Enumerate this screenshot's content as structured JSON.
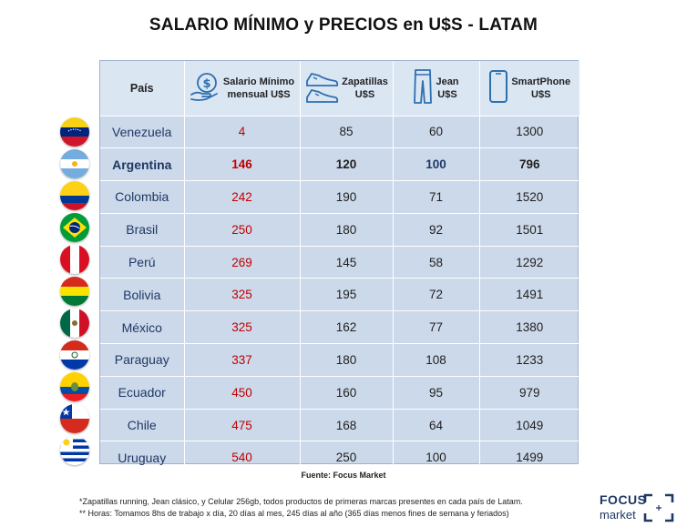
{
  "title": "SALARIO MÍNIMO y PRECIOS en U$S - LATAM",
  "headers": {
    "country": "País",
    "salary": [
      "Salario Mínimo",
      "mensual U$S"
    ],
    "sneakers": [
      "Zapatillas",
      "U$S"
    ],
    "jean": [
      "Jean",
      "U$S"
    ],
    "smartphone": [
      "SmartPhone",
      "U$S"
    ]
  },
  "rows": [
    {
      "country": "Venezuela",
      "salary": "4",
      "sneakers": "85",
      "jean": "60",
      "smartphone": "1300",
      "flag": "venezuela-flag"
    },
    {
      "country": "Argentina",
      "salary": "146",
      "sneakers": "120",
      "jean": "100",
      "smartphone": "796",
      "flag": "argentina-flag"
    },
    {
      "country": "Colombia",
      "salary": "242",
      "sneakers": "190",
      "jean": "71",
      "smartphone": "1520",
      "flag": "colombia-flag"
    },
    {
      "country": "Brasil",
      "salary": "250",
      "sneakers": "180",
      "jean": "92",
      "smartphone": "1501",
      "flag": "brazil-flag"
    },
    {
      "country": "Perú",
      "salary": "269",
      "sneakers": "145",
      "jean": "58",
      "smartphone": "1292",
      "flag": "peru-flag"
    },
    {
      "country": "Bolivia",
      "salary": "325",
      "sneakers": "195",
      "jean": "72",
      "smartphone": "1491",
      "flag": "bolivia-flag"
    },
    {
      "country": "México",
      "salary": "325",
      "sneakers": "162",
      "jean": "77",
      "smartphone": "1380",
      "flag": "mexico-flag"
    },
    {
      "country": "Paraguay",
      "salary": "337",
      "sneakers": "180",
      "jean": "108",
      "smartphone": "1233",
      "flag": "paraguay-flag"
    },
    {
      "country": "Ecuador",
      "salary": "450",
      "sneakers": "160",
      "jean": "95",
      "smartphone": "979",
      "flag": "ecuador-flag"
    },
    {
      "country": "Chile",
      "salary": "475",
      "sneakers": "168",
      "jean": "64",
      "smartphone": "1049",
      "flag": "chile-flag"
    },
    {
      "country": "Uruguay",
      "salary": "540",
      "sneakers": "250",
      "jean": "100",
      "smartphone": "1499",
      "flag": "uruguay-flag"
    }
  ],
  "highlight_row": "Argentina",
  "source": "Fuente: Focus Market",
  "notes": [
    "*Zapatillas running, Jean clásico, y Celular 256gb, todos productos de primeras marcas presentes en cada país de Latam.",
    "** Horas: Tomamos 8hs de trabajo x día, 20 días al mes, 245 días al año (365 días menos fines de semana y feriados)"
  ],
  "logo": {
    "line1": "FOCUS",
    "line2": "market"
  },
  "icons": [
    "money-hand-icon",
    "sneakers-icon",
    "jeans-icon",
    "smartphone-icon"
  ],
  "colors": {
    "table_bg": "#ccd9ea",
    "header_bg": "#dbe6f3",
    "salary_red": "#c00000",
    "country_blue": "#1f3864"
  }
}
